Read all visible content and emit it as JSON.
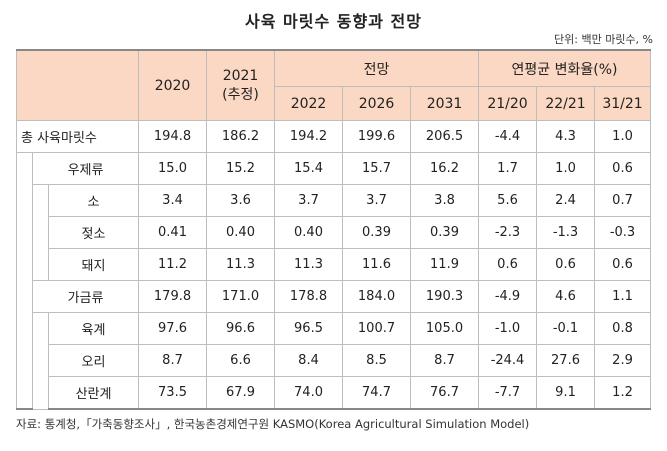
{
  "title": "사육 마릿수 동향과 전망",
  "unit": "단위: 백만 마릿수, %",
  "header": {
    "y2020": "2020",
    "y2021": "2021",
    "y2021_note": "(추정)",
    "forecast": "전망",
    "change": "연평균 변화율(%)",
    "y2022": "2022",
    "y2026": "2026",
    "y2031": "2031",
    "c2120": "21/20",
    "c2221": "22/21",
    "c3121": "31/21"
  },
  "rows": [
    {
      "label": "총 사육마릿수",
      "values": [
        "194.8",
        "186.2",
        "194.2",
        "199.6",
        "206.5",
        "-4.4",
        "4.3",
        "1.0"
      ]
    },
    {
      "label": "우제류",
      "values": [
        "15.0",
        "15.2",
        "15.4",
        "15.7",
        "16.2",
        "1.7",
        "1.0",
        "0.6"
      ]
    },
    {
      "label": "소",
      "values": [
        "3.4",
        "3.6",
        "3.7",
        "3.7",
        "3.8",
        "5.6",
        "2.4",
        "0.7"
      ]
    },
    {
      "label": "젖소",
      "values": [
        "0.41",
        "0.40",
        "0.40",
        "0.39",
        "0.39",
        "-2.3",
        "-1.3",
        "-0.3"
      ]
    },
    {
      "label": "돼지",
      "values": [
        "11.2",
        "11.3",
        "11.3",
        "11.6",
        "11.9",
        "0.6",
        "0.6",
        "0.6"
      ]
    },
    {
      "label": "가금류",
      "values": [
        "179.8",
        "171.0",
        "178.8",
        "184.0",
        "190.3",
        "-4.9",
        "4.6",
        "1.1"
      ]
    },
    {
      "label": "육계",
      "values": [
        "97.6",
        "96.6",
        "96.5",
        "100.7",
        "105.0",
        "-1.0",
        "-0.1",
        "0.8"
      ]
    },
    {
      "label": "오리",
      "values": [
        "8.7",
        "6.6",
        "8.4",
        "8.5",
        "8.7",
        "-24.4",
        "27.6",
        "2.9"
      ]
    },
    {
      "label": "산란계",
      "values": [
        "73.5",
        "67.9",
        "74.0",
        "74.7",
        "76.7",
        "-7.7",
        "9.1",
        "1.2"
      ]
    }
  ],
  "source": "자료: 통계청,「가축동향조사」, 한국농촌경제연구원 KASMO(Korea Agricultural Simulation Model)"
}
